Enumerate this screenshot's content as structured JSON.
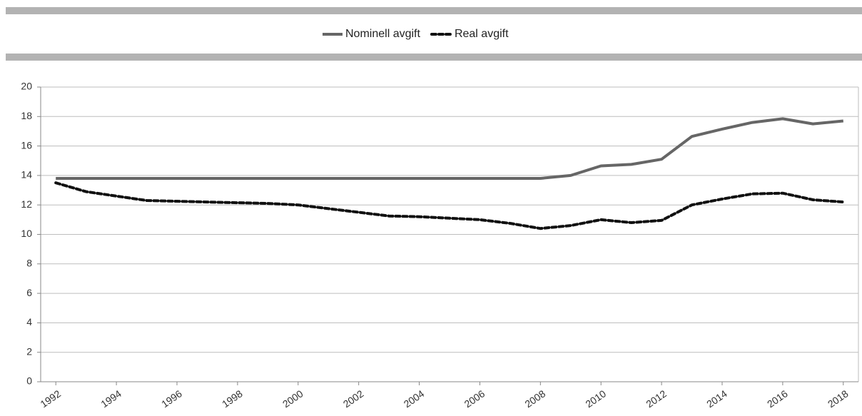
{
  "chart_data": {
    "type": "line",
    "x": [
      1992,
      1993,
      1994,
      1995,
      1996,
      1997,
      1998,
      1999,
      2000,
      2001,
      2002,
      2003,
      2004,
      2005,
      2006,
      2007,
      2008,
      2009,
      2010,
      2011,
      2012,
      2013,
      2014,
      2015,
      2016,
      2017,
      2018
    ],
    "series": [
      {
        "name": "Nominell avgift",
        "color": "#666666",
        "dash": false,
        "values": [
          13.8,
          13.8,
          13.8,
          13.8,
          13.8,
          13.8,
          13.8,
          13.8,
          13.8,
          13.8,
          13.8,
          13.8,
          13.8,
          13.8,
          13.8,
          13.8,
          13.8,
          14.0,
          14.65,
          14.75,
          15.1,
          16.65,
          17.15,
          17.6,
          17.85,
          17.5,
          17.7
        ]
      },
      {
        "name": "Real avgift",
        "color": "#111111",
        "dash": true,
        "values": [
          13.5,
          12.9,
          12.6,
          12.3,
          12.25,
          12.2,
          12.15,
          12.1,
          12.0,
          11.75,
          11.5,
          11.25,
          11.2,
          11.1,
          11.0,
          10.75,
          10.4,
          10.6,
          11.0,
          10.8,
          10.95,
          12.0,
          12.4,
          12.75,
          12.8,
          12.35,
          12.2
        ]
      }
    ],
    "xlim": [
      1991.5,
      2018.5
    ],
    "xticks": [
      1992,
      1994,
      1996,
      1998,
      2000,
      2002,
      2004,
      2006,
      2008,
      2010,
      2012,
      2014,
      2016,
      2018
    ],
    "ylim": [
      0,
      20
    ],
    "yticks": [
      0,
      2,
      4,
      6,
      8,
      10,
      12,
      14,
      16,
      18,
      20
    ],
    "grid": true,
    "legend": "top"
  }
}
